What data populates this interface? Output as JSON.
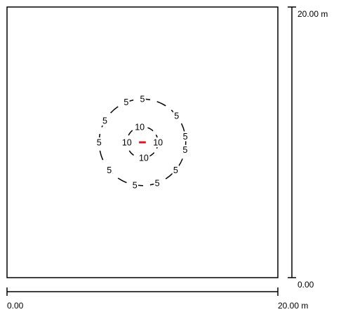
{
  "diagram": {
    "x_scale": {
      "start_label": "0.00",
      "end_label": "20.00 m"
    },
    "y_scale": {
      "start_label": "0.00",
      "end_label": "20.00 m"
    },
    "extent": {
      "x": [
        0,
        20
      ],
      "y": [
        0,
        20
      ]
    },
    "contours": [
      {
        "level_label": "5",
        "center_m": [
          10.0,
          10.0
        ],
        "radius_m": 3.2,
        "label_angles_deg": [
          112,
          90,
          38,
          8,
          -10,
          -40,
          -70,
          -100,
          -140,
          180,
          150
        ]
      },
      {
        "level_label": "10",
        "center_m": [
          10.0,
          10.0
        ],
        "radius_m": 1.15,
        "label_angles_deg": [
          100,
          0,
          -85,
          180
        ]
      }
    ],
    "source": {
      "center_m": [
        10.0,
        10.0
      ],
      "length_m": 0.5,
      "color": "#e0141e"
    },
    "line_color": "#000000"
  }
}
